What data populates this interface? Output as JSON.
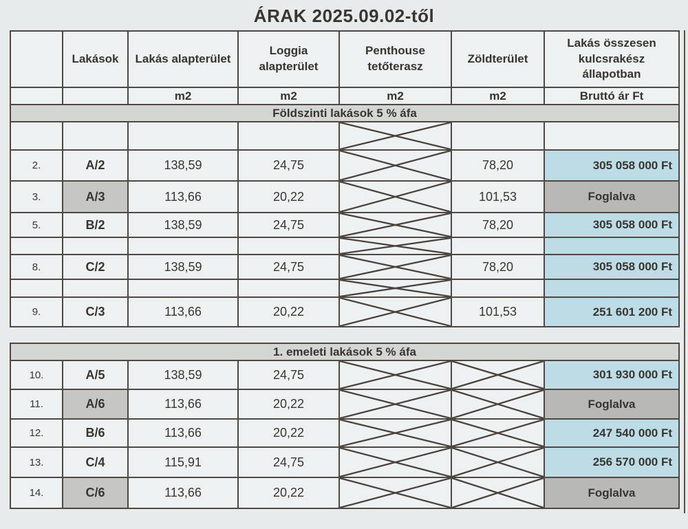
{
  "title": "ÁRAK 2025.09.02-től",
  "header": {
    "labels": [
      "",
      "Lakások",
      "Lakás alapterület",
      "Loggia alapterület",
      "Penthouse tetőterasz",
      "Zöldterület",
      "Lakás összesen kulcsrakész állapotban"
    ],
    "units": [
      "",
      "",
      "m2",
      "m2",
      "m2",
      "m2",
      "Bruttó ár Ft"
    ]
  },
  "legend": {
    "available_price_bg": "#bddce6",
    "reserved_bg": "#b8b9b7",
    "reserved_unit_bg": "#c6c7c5",
    "crossed_cell_meaning": "not applicable"
  },
  "sections": [
    {
      "band": "Földszinti lakások 5 % áfa",
      "crossed_columns": [
        "penthouse"
      ],
      "rows": [
        {
          "num": "",
          "unit": "",
          "area": "",
          "loggia": "",
          "penthouse": "",
          "green": "",
          "price": "",
          "status": "blank"
        },
        {
          "num": "2.",
          "unit": "A/2",
          "area": "138,59",
          "loggia": "24,75",
          "penthouse": "",
          "green": "78,20",
          "price": "305 058 000 Ft",
          "status": "available"
        },
        {
          "num": "3.",
          "unit": "A/3",
          "area": "113,66",
          "loggia": "20,22",
          "penthouse": "",
          "green": "101,53",
          "price": "Foglalva",
          "status": "reserved"
        },
        {
          "num": "5.",
          "unit": "B/2",
          "area": "138,59",
          "loggia": "24,75",
          "penthouse": "",
          "green": "78,20",
          "price": "305 058 000 Ft",
          "status": "available"
        },
        {
          "num": "",
          "unit": "",
          "area": "",
          "loggia": "",
          "penthouse": "",
          "green": "",
          "price": "",
          "status": "available"
        },
        {
          "num": "8.",
          "unit": "C/2",
          "area": "138,59",
          "loggia": "24,75",
          "penthouse": "",
          "green": "78,20",
          "price": "305 058 000 Ft",
          "status": "available"
        },
        {
          "num": "",
          "unit": "",
          "area": "",
          "loggia": "",
          "penthouse": "",
          "green": "",
          "price": "",
          "status": "available"
        },
        {
          "num": "9.",
          "unit": "C/3",
          "area": "113,66",
          "loggia": "20,22",
          "penthouse": "",
          "green": "101,53",
          "price": "251 601 200 Ft",
          "status": "available"
        }
      ]
    },
    {
      "band": "1. emeleti lakások 5 % áfa",
      "crossed_columns": [
        "penthouse",
        "green"
      ],
      "rows": [
        {
          "num": "10.",
          "unit": "A/5",
          "area": "138,59",
          "loggia": "24,75",
          "penthouse": "",
          "green": "",
          "price": "301 930 000 Ft",
          "status": "available"
        },
        {
          "num": "11.",
          "unit": "A/6",
          "area": "113,66",
          "loggia": "20,22",
          "penthouse": "",
          "green": "",
          "price": "Foglalva",
          "status": "reserved"
        },
        {
          "num": "12.",
          "unit": "B/6",
          "area": "113,66",
          "loggia": "20,22",
          "penthouse": "",
          "green": "",
          "price": "247 540 000 Ft",
          "status": "available"
        },
        {
          "num": "13.",
          "unit": "C/4",
          "area": "115,91",
          "loggia": "24,75",
          "penthouse": "",
          "green": "",
          "price": "256 570 000 Ft",
          "status": "available"
        },
        {
          "num": "14.",
          "unit": "C/6",
          "area": "113,66",
          "loggia": "20,22",
          "penthouse": "",
          "green": "",
          "price": "Foglalva",
          "status": "reserved"
        }
      ]
    }
  ]
}
